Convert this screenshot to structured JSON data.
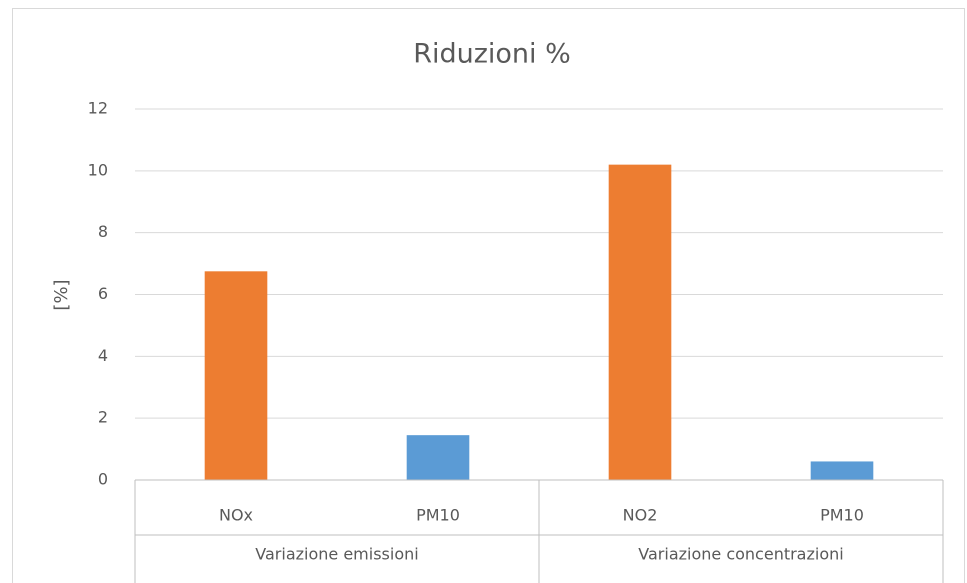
{
  "chart_data": {
    "type": "bar",
    "title": "Riduzioni %",
    "ylabel": "[%]",
    "categories": [
      "NOx",
      "PM10",
      "NO2",
      "PM10"
    ],
    "groups": [
      "Variazione emissioni",
      "Variazione concentrazioni"
    ],
    "values": [
      6.75,
      1.45,
      10.2,
      0.6
    ],
    "colors": [
      "#ed7d31",
      "#5b9bd5",
      "#ed7d31",
      "#5b9bd5"
    ],
    "ylim": [
      0,
      12
    ],
    "yticks": [
      0,
      2,
      4,
      6,
      8,
      10,
      12
    ],
    "grid": true
  }
}
